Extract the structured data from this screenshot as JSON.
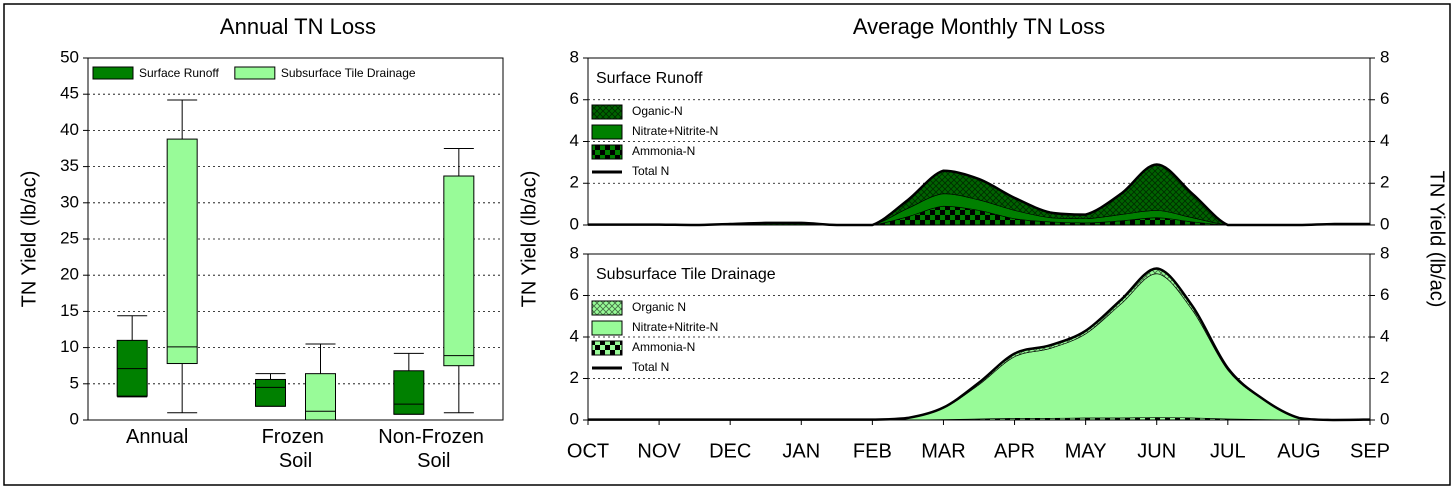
{
  "chart_data": [
    {
      "type": "box",
      "title": "Annual TN Loss",
      "ylabel": "TN Yield (lb/ac)",
      "categories": [
        "Annual",
        "Frozen Soil",
        "Non-Frozen Soil"
      ],
      "series": [
        {
          "name": "Surface Runoff",
          "color": "#008000",
          "values": [
            [
              3.2,
              3.3,
              7.1,
              11,
              14.4
            ],
            [
              1.9,
              1.9,
              4.5,
              5.6,
              6.4
            ],
            [
              0.8,
              0.8,
              2.2,
              6.8,
              9.2
            ]
          ]
        },
        {
          "name": "Subsurface Tile Drainage",
          "color": "#98fb98",
          "values": [
            [
              1,
              7.8,
              10.1,
              38.8,
              44.2
            ],
            [
              0,
              0,
              1.2,
              6.4,
              10.5
            ],
            [
              1,
              7.5,
              8.9,
              33.7,
              37.5
            ]
          ]
        }
      ],
      "ylim": [
        0,
        50
      ],
      "yticks": [
        0,
        5,
        10,
        15,
        20,
        25,
        30,
        35,
        40,
        45,
        50
      ],
      "grid": true,
      "legend": "top-left"
    },
    {
      "type": "area",
      "title": "Average Monthly TN Loss",
      "panel": "Surface Runoff",
      "ylabel": "TN Yield (lb/ac)",
      "y2label": "TN Yield (lb/ac)",
      "x": [
        0,
        0.5,
        1,
        1.5,
        2,
        2.5,
        3,
        3.5,
        4,
        4.5,
        5,
        5.5,
        6,
        6.5,
        7,
        7.5,
        8,
        8.5,
        9,
        9.5,
        10,
        10.5,
        11
      ],
      "xlim": [
        0,
        11
      ],
      "series": [
        {
          "name": "Oganic-N",
          "color": "#006400",
          "pattern": "crosshatch",
          "values": [
            0,
            0,
            0,
            0,
            0.05,
            0.1,
            0.1,
            0,
            0,
            0.4,
            1.1,
            1.0,
            0.6,
            0.25,
            0.2,
            1.0,
            2.2,
            1.15,
            0,
            0,
            0,
            0.05,
            0.05
          ]
        },
        {
          "name": "Nitrate+Nitrite-N",
          "color": "#008000",
          "values": [
            0,
            0,
            0,
            0,
            0,
            0,
            0,
            0,
            0,
            0.4,
            0.6,
            0.5,
            0.4,
            0.2,
            0.2,
            0.3,
            0.35,
            0.2,
            0,
            0,
            0,
            0,
            0
          ]
        },
        {
          "name": "Ammonia-N",
          "color": "#008000",
          "pattern": "checker",
          "values": [
            0,
            0,
            0,
            0,
            0,
            0,
            0,
            0,
            0,
            0.4,
            0.9,
            0.7,
            0.3,
            0.15,
            0.1,
            0.2,
            0.35,
            0.15,
            0,
            0,
            0,
            0,
            0
          ]
        },
        {
          "name": "Total N",
          "color": "#000000",
          "line": true,
          "values": [
            0.02,
            0.02,
            0.02,
            0,
            0.05,
            0.1,
            0.1,
            0,
            0,
            1.2,
            2.6,
            2.2,
            1.3,
            0.6,
            0.5,
            1.5,
            2.9,
            1.5,
            0,
            0,
            0,
            0.05,
            0.05
          ]
        }
      ],
      "ylim": [
        0,
        8
      ],
      "yticks": [
        0,
        2,
        4,
        6,
        8
      ],
      "y2lim": [
        0,
        8
      ],
      "y2ticks": [
        0,
        2,
        4,
        6,
        8
      ],
      "grid": true
    },
    {
      "type": "area",
      "panel": "Subsurface Tile Drainage",
      "x": [
        0,
        0.5,
        1,
        1.5,
        2,
        2.5,
        3,
        3.5,
        4,
        4.5,
        5,
        5.5,
        6,
        6.5,
        7,
        7.5,
        8,
        8.5,
        9,
        9.5,
        10,
        10.5,
        11
      ],
      "xlim": [
        0,
        11
      ],
      "xticks": [
        {
          "value": 0,
          "label": "OCT"
        },
        {
          "value": 1,
          "label": "NOV"
        },
        {
          "value": 2,
          "label": "DEC"
        },
        {
          "value": 3,
          "label": "JAN"
        },
        {
          "value": 4,
          "label": "FEB"
        },
        {
          "value": 5,
          "label": "MAR"
        },
        {
          "value": 6,
          "label": "APR"
        },
        {
          "value": 7,
          "label": "MAY"
        },
        {
          "value": 8,
          "label": "JUN"
        },
        {
          "value": 9,
          "label": "JUL"
        },
        {
          "value": 10,
          "label": "AUG"
        },
        {
          "value": 11,
          "label": "SEP"
        }
      ],
      "series": [
        {
          "name": "Organic N",
          "color": "#98fb98",
          "pattern": "crosshatch",
          "values": [
            0,
            0,
            0,
            0,
            0,
            0,
            0,
            0,
            0,
            0,
            0.03,
            0.1,
            0.15,
            0.15,
            0.15,
            0.2,
            0.25,
            0.2,
            0.1,
            0.03,
            0,
            0,
            0
          ]
        },
        {
          "name": "Nitrate+Nitrite-N",
          "color": "#98fb98",
          "values": [
            0.02,
            0.02,
            0.02,
            0.02,
            0.02,
            0.02,
            0.02,
            0.02,
            0.02,
            0.1,
            0.55,
            1.65,
            2.97,
            3.37,
            4.05,
            5.5,
            6.93,
            5.2,
            2.35,
            0.95,
            0.1,
            0,
            0.02
          ]
        },
        {
          "name": "Ammonia-N",
          "color": "#98fb98",
          "pattern": "checker",
          "values": [
            0,
            0,
            0,
            0,
            0,
            0,
            0,
            0,
            0,
            0,
            0.02,
            0.05,
            0.08,
            0.08,
            0.1,
            0.1,
            0.12,
            0.1,
            0.05,
            0.02,
            0,
            0,
            0
          ]
        },
        {
          "name": "Total N",
          "color": "#000000",
          "line": true,
          "values": [
            0.02,
            0.02,
            0.02,
            0.02,
            0.02,
            0.02,
            0.02,
            0.02,
            0.02,
            0.1,
            0.6,
            1.8,
            3.2,
            3.6,
            4.3,
            5.8,
            7.3,
            5.5,
            2.5,
            1.0,
            0.1,
            0,
            0.02
          ]
        }
      ],
      "ylim": [
        0,
        8
      ],
      "yticks": [
        0,
        2,
        4,
        6,
        8
      ],
      "y2lim": [
        0,
        8
      ],
      "y2ticks": [
        0,
        2,
        4,
        6,
        8
      ],
      "grid": true
    }
  ]
}
